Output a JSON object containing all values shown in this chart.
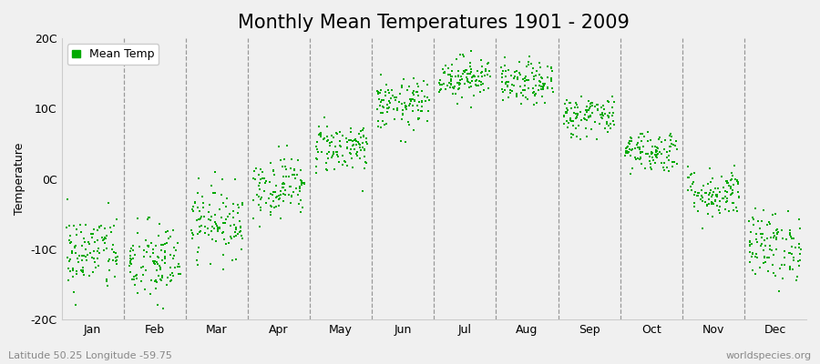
{
  "title": "Monthly Mean Temperatures 1901 - 2009",
  "ylabel": "Temperature",
  "xlabel": "",
  "ylim": [
    -20,
    20
  ],
  "yticks": [
    -20,
    -10,
    0,
    10,
    20
  ],
  "ytick_labels": [
    "-20C",
    "-10C",
    "0C",
    "10C",
    "20C"
  ],
  "months": [
    "Jan",
    "Feb",
    "Mar",
    "Apr",
    "May",
    "Jun",
    "Jul",
    "Aug",
    "Sep",
    "Oct",
    "Nov",
    "Dec"
  ],
  "monthly_means": [
    -10.5,
    -12.0,
    -6.0,
    -1.0,
    4.5,
    10.5,
    14.5,
    13.5,
    9.0,
    4.0,
    -2.0,
    -9.5
  ],
  "monthly_stds": [
    2.8,
    3.0,
    2.5,
    2.2,
    1.8,
    1.8,
    1.5,
    1.5,
    1.5,
    1.5,
    1.8,
    2.5
  ],
  "n_years": 109,
  "start_year": 1901,
  "dot_color": "#00aa00",
  "dot_size": 3,
  "background_color": "#f0f0f0",
  "plot_bg_color": "#f0f0f0",
  "band_color": "#f0f0f0",
  "dashed_line_color": "#999999",
  "legend_label": "Mean Temp",
  "bottom_left_text": "Latitude 50.25 Longitude -59.75",
  "bottom_right_text": "worldspecies.org",
  "title_fontsize": 15,
  "axis_label_fontsize": 9,
  "tick_fontsize": 9,
  "annotation_fontsize": 8
}
